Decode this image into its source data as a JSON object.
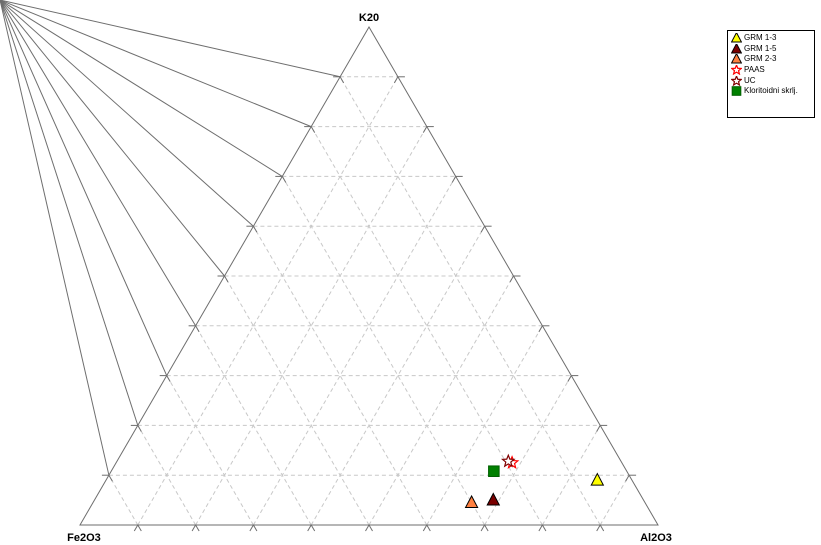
{
  "chart_data": {
    "type": "scatter",
    "subtype": "ternary",
    "title": "",
    "axes": {
      "top": "K20",
      "left": "Fe2O3",
      "right": "Al2O3"
    },
    "grid": true,
    "grid_step": 10,
    "legend_position": "top-right",
    "series": [
      {
        "name": "GRM 1-3",
        "marker": "triangle",
        "fill": "#ffff00",
        "stroke": "#000000",
        "points": [
          {
            "K20": 9,
            "Fe2O3": 6,
            "Al2O3": 85
          }
        ]
      },
      {
        "name": "GRM 1-5",
        "marker": "triangle",
        "fill": "#7a0000",
        "stroke": "#000000",
        "points": [
          {
            "K20": 5,
            "Fe2O3": 26,
            "Al2O3": 69
          }
        ]
      },
      {
        "name": "GRM 2-3",
        "marker": "triangle",
        "fill": "#ff8040",
        "stroke": "#000000",
        "points": [
          {
            "K20": 4.5,
            "Fe2O3": 30,
            "Al2O3": 65.5
          }
        ]
      },
      {
        "name": "PAAS",
        "marker": "star",
        "fill": "#ffffff",
        "stroke": "#ff0000",
        "points": [
          {
            "K20": 12.5,
            "Fe2O3": 19,
            "Al2O3": 68.5
          }
        ]
      },
      {
        "name": "UC",
        "marker": "star",
        "fill": "#ffffff",
        "stroke": "#800000",
        "points": [
          {
            "K20": 12.8,
            "Fe2O3": 19.5,
            "Al2O3": 67.7
          }
        ]
      },
      {
        "name": "Kloritoidni skrlj.",
        "marker": "square",
        "fill": "#008000",
        "stroke": "#006000",
        "points": [
          {
            "K20": 10.8,
            "Fe2O3": 23,
            "Al2O3": 66.2
          }
        ]
      }
    ]
  }
}
